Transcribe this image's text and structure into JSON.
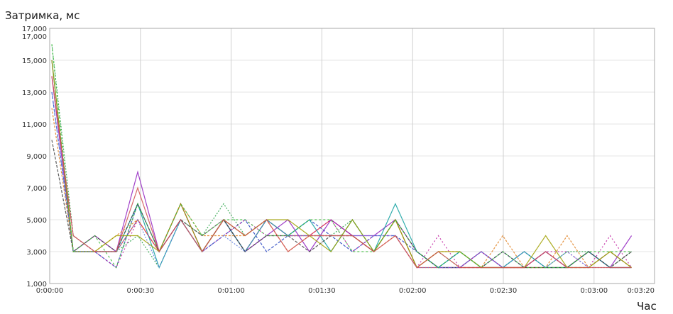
{
  "chart_data": {
    "type": "line",
    "title": "",
    "ylabel": "Затримка, мс",
    "xlabel": "Час",
    "ylim": [
      1000,
      17000
    ],
    "y_ticks": [
      "1,000",
      "3,000",
      "5,000",
      "7,000",
      "9,000",
      "11,000",
      "13,000",
      "15,000",
      "17,000",
      "17,000"
    ],
    "x_ticks": [
      "0:00:00",
      "0:00:30",
      "0:01:00",
      "0:01:30",
      "0:02:00",
      "0:02:30",
      "0:03:00",
      "0:03:20"
    ],
    "grid": true,
    "legend": "none",
    "colors": [
      "#e03030",
      "#2040c0",
      "#20a040",
      "#9020c0",
      "#e08020",
      "#10a0a0",
      "#c020a0",
      "#404040",
      "#a0a000",
      "#6080e0",
      "#40c040",
      "#d05050"
    ],
    "series": [
      {
        "values": [
          15000,
          3000,
          3000,
          3000,
          5000,
          3000,
          6000,
          3000,
          5000,
          3000,
          5000,
          4000,
          4000,
          5000,
          4000,
          3000,
          5000,
          2000,
          2000,
          2000,
          2000,
          2000,
          2000,
          2000,
          2000,
          3000,
          2000,
          2000
        ]
      },
      {
        "values": [
          13000,
          3000,
          3000,
          2000,
          6000,
          3000,
          6000,
          3000,
          4000,
          5000,
          3000,
          4000,
          5000,
          4000,
          3000,
          4000,
          4000,
          3000,
          2000,
          3000,
          2000,
          3000,
          2000,
          3000,
          2000,
          2000,
          3000,
          2000
        ]
      },
      {
        "values": [
          16000,
          4000,
          3000,
          3000,
          4000,
          2000,
          5000,
          4000,
          6000,
          4000,
          5000,
          4000,
          4000,
          4000,
          5000,
          3000,
          5000,
          2000,
          3000,
          2000,
          3000,
          2000,
          3000,
          2000,
          3000,
          3000,
          2000,
          3000
        ]
      },
      {
        "values": [
          14000,
          3000,
          4000,
          3000,
          8000,
          3000,
          5000,
          3000,
          5000,
          3000,
          4000,
          5000,
          3000,
          5000,
          4000,
          4000,
          5000,
          3000,
          2000,
          2000,
          3000,
          2000,
          2000,
          3000,
          2000,
          3000,
          2000,
          4000
        ]
      },
      {
        "values": [
          12000,
          3000,
          3000,
          4000,
          5000,
          3000,
          6000,
          4000,
          4000,
          4000,
          5000,
          3000,
          4000,
          4000,
          4000,
          3000,
          4000,
          2000,
          3000,
          3000,
          2000,
          4000,
          2000,
          2000,
          4000,
          2000,
          3000,
          2000
        ]
      },
      {
        "values": [
          15000,
          3000,
          3000,
          3000,
          6000,
          2000,
          5000,
          3000,
          5000,
          3000,
          5000,
          4000,
          5000,
          3000,
          5000,
          3000,
          6000,
          3000,
          2000,
          3000,
          2000,
          2000,
          3000,
          2000,
          2000,
          3000,
          2000,
          2000
        ]
      },
      {
        "values": [
          14000,
          4000,
          3000,
          2000,
          5000,
          3000,
          6000,
          3000,
          4000,
          5000,
          4000,
          4000,
          4000,
          5000,
          3000,
          4000,
          4000,
          2000,
          4000,
          2000,
          3000,
          2000,
          2000,
          3000,
          3000,
          2000,
          4000,
          2000
        ]
      },
      {
        "values": [
          10000,
          3000,
          4000,
          3000,
          6000,
          3000,
          5000,
          4000,
          5000,
          3000,
          4000,
          4000,
          3000,
          4000,
          4000,
          3000,
          5000,
          3000,
          2000,
          2000,
          2000,
          3000,
          2000,
          2000,
          2000,
          3000,
          2000,
          3000
        ]
      },
      {
        "values": [
          15000,
          3000,
          3000,
          4000,
          4000,
          3000,
          6000,
          3000,
          5000,
          4000,
          5000,
          5000,
          4000,
          3000,
          5000,
          3000,
          5000,
          2000,
          3000,
          3000,
          2000,
          2000,
          2000,
          4000,
          2000,
          2000,
          3000,
          2000
        ]
      },
      {
        "values": [
          13000,
          3000,
          3000,
          3000,
          5000,
          2000,
          5000,
          3000,
          4000,
          3000,
          5000,
          4000,
          4000,
          4000,
          4000,
          4000,
          4000,
          2000,
          2000,
          2000,
          3000,
          2000,
          3000,
          2000,
          3000,
          2000,
          2000,
          2000
        ]
      },
      {
        "values": [
          16000,
          3000,
          4000,
          2000,
          6000,
          3000,
          6000,
          4000,
          5000,
          5000,
          4000,
          4000,
          5000,
          5000,
          3000,
          3000,
          5000,
          3000,
          2000,
          3000,
          2000,
          3000,
          2000,
          2000,
          2000,
          3000,
          3000,
          3000
        ]
      },
      {
        "values": [
          14000,
          4000,
          3000,
          3000,
          7000,
          3000,
          5000,
          3000,
          5000,
          4000,
          5000,
          3000,
          4000,
          4000,
          4000,
          3000,
          4000,
          2000,
          3000,
          2000,
          2000,
          2000,
          2000,
          3000,
          2000,
          2000,
          2000,
          2000
        ]
      }
    ]
  }
}
